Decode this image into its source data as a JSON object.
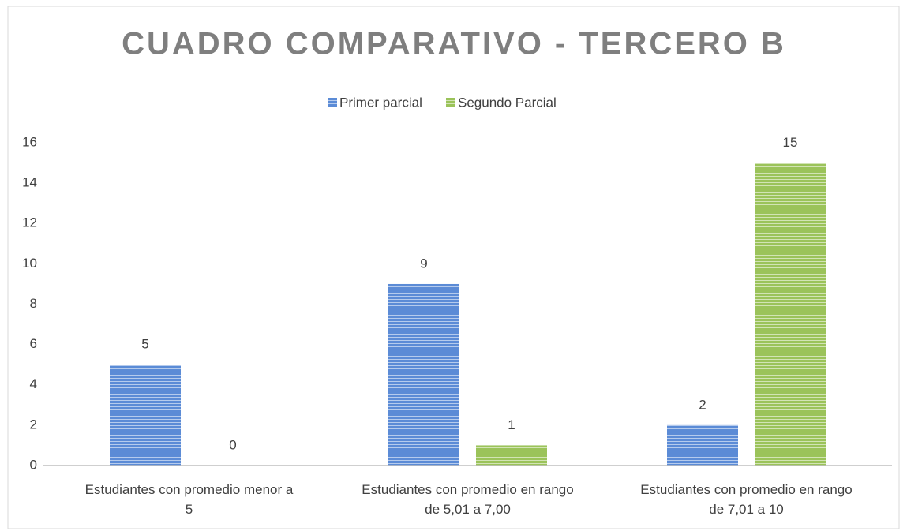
{
  "chart_data": {
    "type": "bar",
    "title": "CUADRO COMPARATIVO - TERCERO B",
    "categories": [
      "Estudiantes con promedio menor a 5",
      "Estudiantes con promedio en rango de 5,01 a 7,00",
      "Estudiantes con promedio en rango de 7,01 a 10"
    ],
    "series": [
      {
        "name": "Primer parcial",
        "color": "#5b8bd6",
        "values": [
          5,
          9,
          2
        ]
      },
      {
        "name": "Segundo Parcial",
        "color": "#9bc35a",
        "values": [
          0,
          1,
          15
        ]
      }
    ],
    "ylim": [
      0,
      16
    ],
    "yticks": [
      0,
      2,
      4,
      6,
      8,
      10,
      12,
      14,
      16
    ],
    "grid": false,
    "legend": "top"
  }
}
